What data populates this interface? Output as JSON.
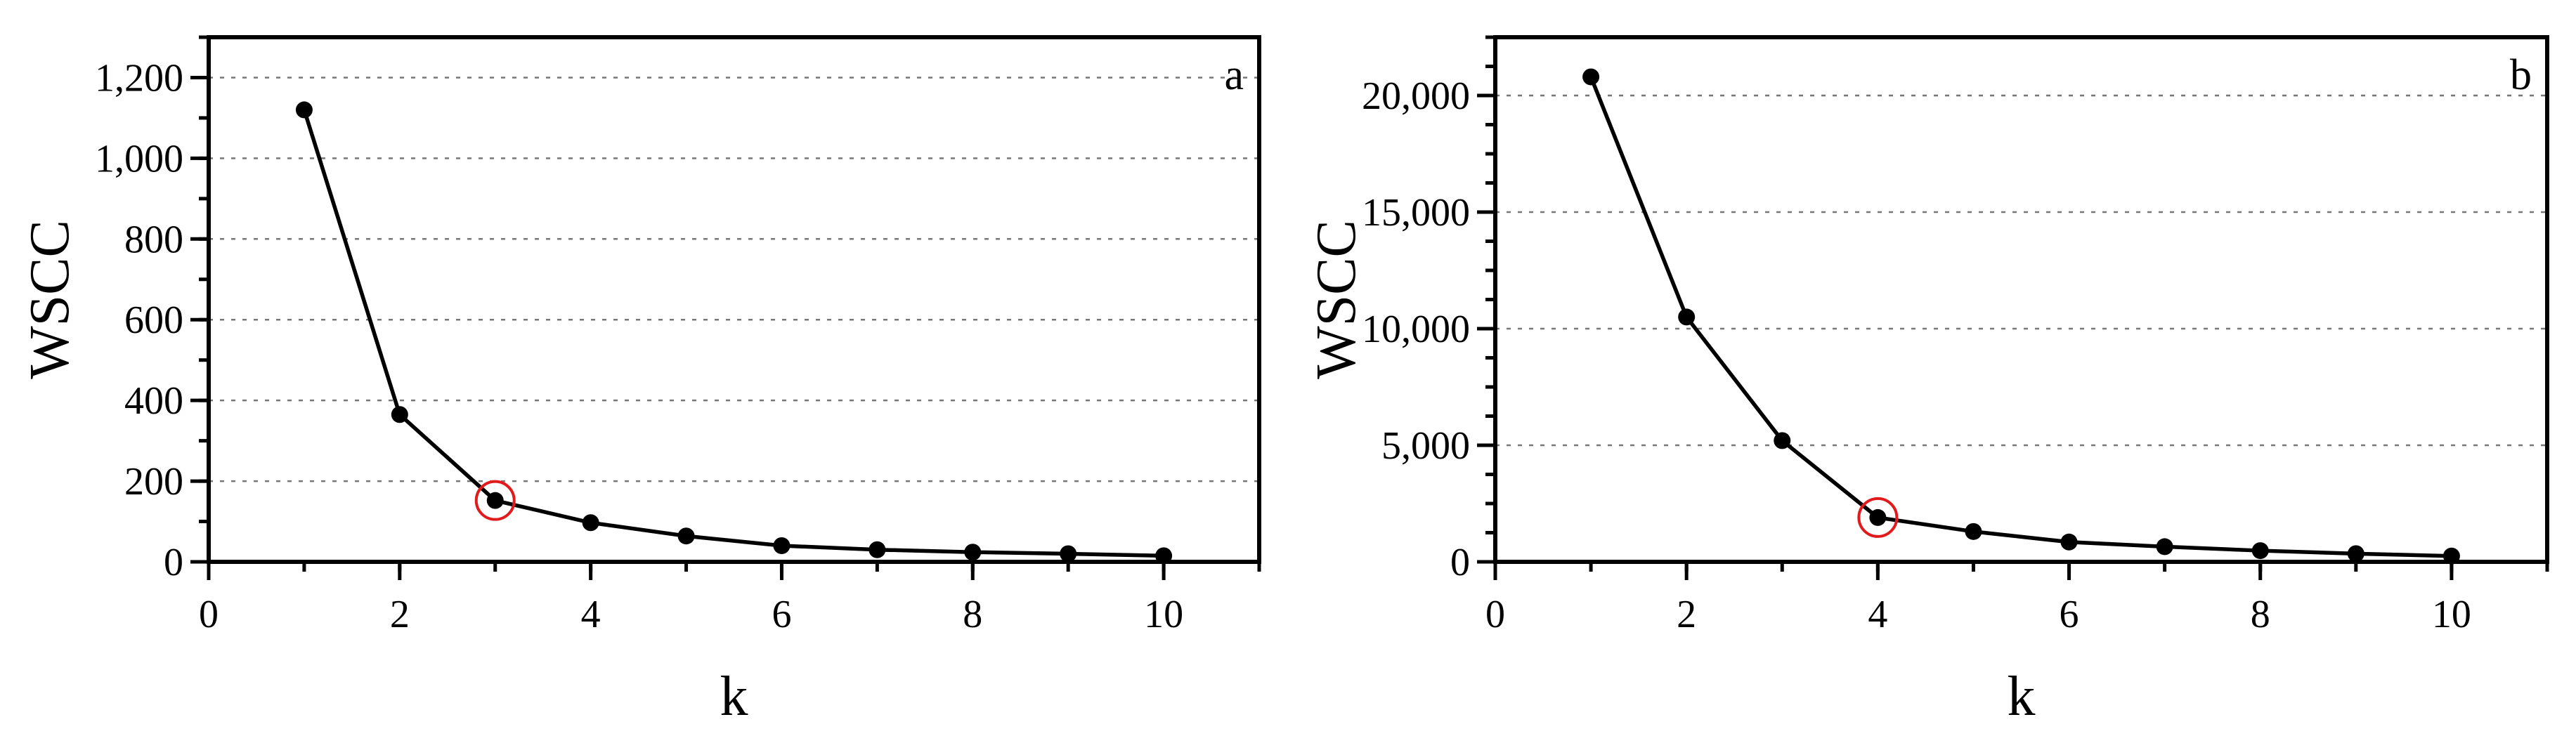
{
  "chart_data": [
    {
      "type": "line",
      "panel_label": "a",
      "xlabel": "k",
      "ylabel": "WSCC",
      "xlim": [
        0,
        11
      ],
      "ylim": [
        0,
        1300
      ],
      "x_ticks": [
        0,
        2,
        4,
        6,
        8,
        10
      ],
      "x_tick_labels": [
        "0",
        "2",
        "4",
        "6",
        "8",
        "10"
      ],
      "y_ticks": [
        0,
        200,
        400,
        600,
        800,
        1000,
        1200
      ],
      "y_tick_labels": [
        "0",
        "200",
        "400",
        "600",
        "800",
        "1,000",
        "1,200"
      ],
      "y_minor_step": 100,
      "x": [
        1,
        2,
        3,
        4,
        5,
        6,
        7,
        8,
        9,
        10
      ],
      "y": [
        1120,
        365,
        152,
        97,
        64,
        40,
        30,
        24,
        20,
        15
      ],
      "highlight_x": 3,
      "highlight_color": "#e31a1c",
      "grid": "horizontal dotted at major y ticks"
    },
    {
      "type": "line",
      "panel_label": "b",
      "xlabel": "k",
      "ylabel": "WSCC",
      "xlim": [
        0,
        11
      ],
      "ylim": [
        0,
        22500
      ],
      "x_ticks": [
        0,
        2,
        4,
        6,
        8,
        10
      ],
      "x_tick_labels": [
        "0",
        "2",
        "4",
        "6",
        "8",
        "10"
      ],
      "y_ticks": [
        0,
        5000,
        10000,
        15000,
        20000
      ],
      "y_tick_labels": [
        "0",
        "5,000",
        "10,000",
        "15,000",
        "20,000"
      ],
      "y_minor_step": 1250,
      "x": [
        1,
        2,
        3,
        4,
        5,
        6,
        7,
        8,
        9,
        10
      ],
      "y": [
        20800,
        10500,
        5200,
        1900,
        1300,
        850,
        650,
        480,
        350,
        250
      ],
      "highlight_x": 4,
      "highlight_color": "#e31a1c",
      "grid": "horizontal dotted at major y ticks"
    }
  ]
}
